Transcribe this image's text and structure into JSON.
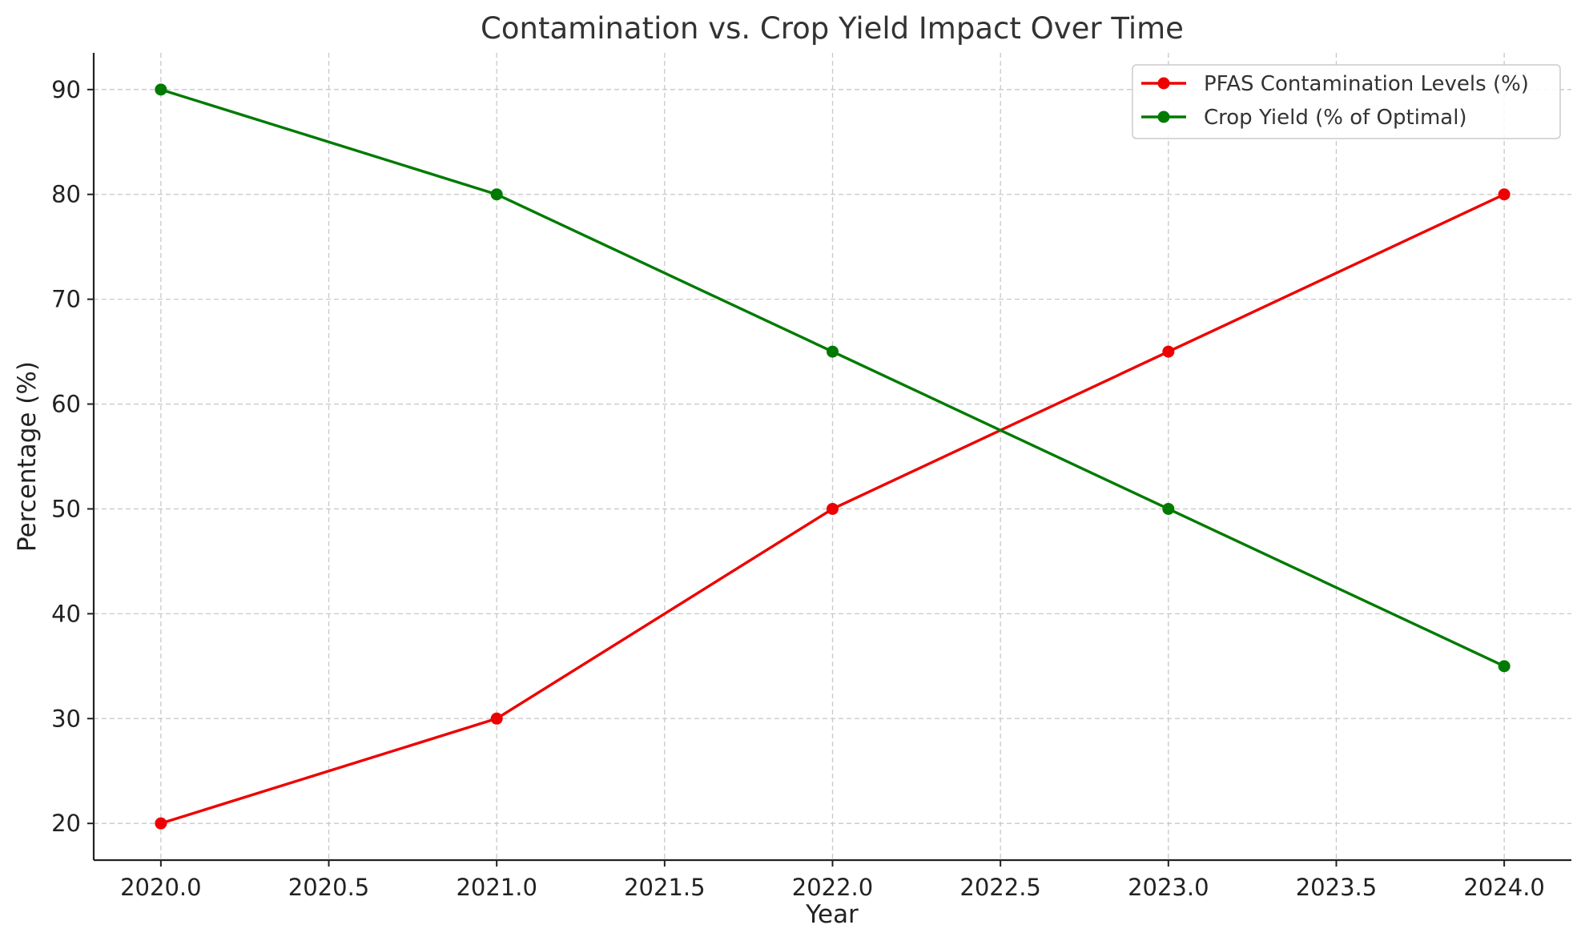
{
  "chart_data": {
    "type": "line",
    "title": "Contamination vs. Crop Yield Impact Over Time",
    "xlabel": "Year",
    "ylabel": "Percentage (%)",
    "x": [
      2020,
      2021,
      2022,
      2023,
      2024
    ],
    "xlim": [
      2019.8,
      2024.2
    ],
    "ylim": [
      16.5,
      93.5
    ],
    "xticks": [
      "2020.0",
      "2020.5",
      "2021.0",
      "2021.5",
      "2022.0",
      "2022.5",
      "2023.0",
      "2023.5",
      "2024.0"
    ],
    "xtick_values": [
      2020.0,
      2020.5,
      2021.0,
      2021.5,
      2022.0,
      2022.5,
      2023.0,
      2023.5,
      2024.0
    ],
    "yticks": [
      "20",
      "30",
      "40",
      "50",
      "60",
      "70",
      "80",
      "90"
    ],
    "ytick_values": [
      20,
      30,
      40,
      50,
      60,
      70,
      80,
      90
    ],
    "grid": true,
    "legend_position": "top-right",
    "series": [
      {
        "name": "PFAS Contamination Levels (%)",
        "color": "#ee0000",
        "values": [
          20,
          30,
          50,
          65,
          80
        ]
      },
      {
        "name": "Crop Yield (% of Optimal)",
        "color": "#007a00",
        "values": [
          90,
          80,
          65,
          50,
          35
        ]
      }
    ]
  }
}
